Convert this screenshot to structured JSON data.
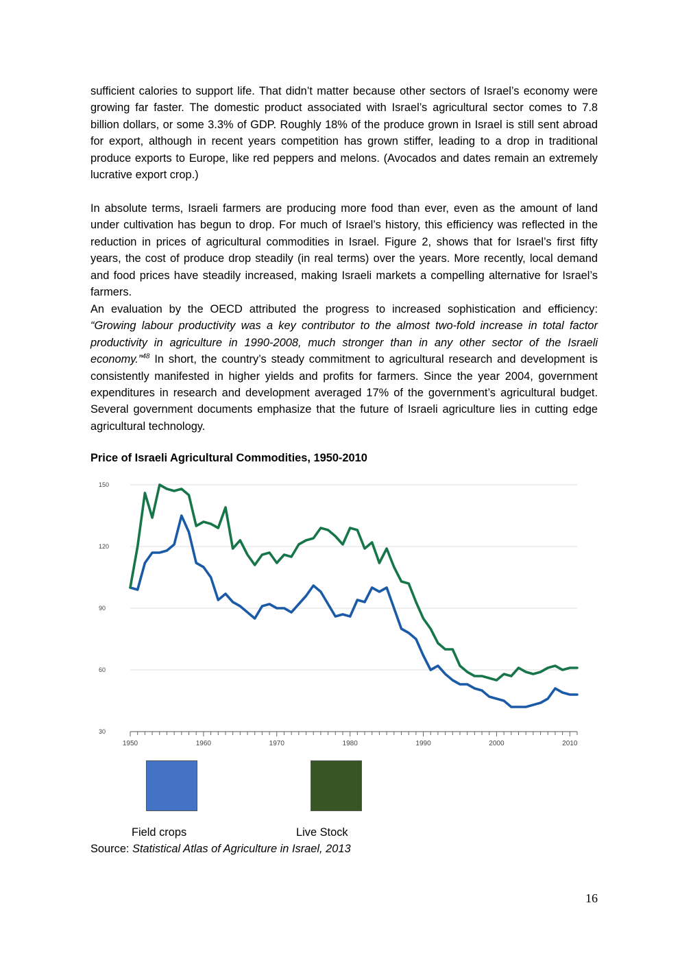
{
  "paragraph1": "sufficient calories to support life. That didn’t matter because other sectors of Israel’s economy were growing far faster. The domestic product associated with Israel’s agricultural sector comes to 7.8 billion dollars, or some 3.3% of GDP. Roughly 18% of the produce grown in Israel is still sent abroad for export, although in recent years competition has grown stiffer, leading to a drop in traditional produce exports to Europe, like red peppers and melons. (Avocados and dates remain an extremely lucrative export crop.)",
  "paragraph2": "In absolute terms, Israeli farmers are producing more food than ever, even as the amount of land under cultivation has begun to drop. For much of Israel’s history, this efficiency was reflected in the reduction in prices of agricultural commodities in Israel. Figure 2, shows that for Israel’s first fifty years, the cost of produce drop steadily (in real terms) over the years. More recently, local demand and food prices have steadily increased, making Israeli markets a compelling alternative for Israel’s farmers.",
  "paragraph3": {
    "intro": "An evaluation by the OECD attributed the progress to increased sophistication and efficiency: ",
    "quote": "“Growing labour productivity was a key contributor to the almost two-fold increase in total factor productivity in agriculture in 1990-2008, much stronger than in any other sector of the Israeli economy.”",
    "footnote": "48",
    "rest": " In short, the country’s steady commitment to agricultural research and development is consistently manifested in higher yields and profits for farmers. Since the year 2004, government expenditures in research and development averaged 17% of the government’s agricultural budget. Several government documents emphasize that the future of Israeli agriculture lies in cutting edge agricultural technology."
  },
  "figure_title": "Price of Israeli Agricultural Commodities, 1950-2010",
  "legend": {
    "field_crops": "Field crops",
    "live_stock": "Live Stock",
    "field_color": "#4472c4",
    "live_color": "#375623"
  },
  "source": {
    "prefix": "Source: ",
    "title": "Statistical Atlas of Agriculture in Israel, 2013"
  },
  "page_number": "16",
  "chart_data": {
    "type": "line",
    "xlim": [
      1950,
      2011
    ],
    "ylim": [
      30,
      150
    ],
    "yticks": [
      30,
      60,
      90,
      120,
      150
    ],
    "xticks": [
      1950,
      1960,
      1970,
      1980,
      1990,
      2000,
      2010
    ],
    "grid": true,
    "series": [
      {
        "key": "field",
        "color": "#1a5aa6",
        "points": [
          [
            1950,
            100
          ],
          [
            1951,
            99
          ],
          [
            1952,
            112
          ],
          [
            1953,
            117
          ],
          [
            1954,
            117
          ],
          [
            1955,
            118
          ],
          [
            1956,
            121
          ],
          [
            1957,
            135
          ],
          [
            1958,
            127
          ],
          [
            1959,
            112
          ],
          [
            1960,
            110
          ],
          [
            1961,
            105
          ],
          [
            1962,
            94
          ],
          [
            1963,
            97
          ],
          [
            1964,
            93
          ],
          [
            1965,
            91
          ],
          [
            1966,
            88
          ],
          [
            1967,
            85
          ],
          [
            1968,
            91
          ],
          [
            1969,
            92
          ],
          [
            1970,
            90
          ],
          [
            1971,
            90
          ],
          [
            1972,
            88
          ],
          [
            1973,
            92
          ],
          [
            1974,
            96
          ],
          [
            1975,
            101
          ],
          [
            1976,
            98
          ],
          [
            1977,
            92
          ],
          [
            1978,
            86
          ],
          [
            1979,
            87
          ],
          [
            1980,
            86
          ],
          [
            1981,
            94
          ],
          [
            1982,
            93
          ],
          [
            1983,
            100
          ],
          [
            1984,
            98
          ],
          [
            1985,
            100
          ],
          [
            1986,
            90
          ],
          [
            1987,
            80
          ],
          [
            1988,
            78
          ],
          [
            1989,
            75
          ],
          [
            1990,
            67
          ],
          [
            1991,
            60
          ],
          [
            1992,
            62
          ],
          [
            1993,
            58
          ],
          [
            1994,
            55
          ],
          [
            1995,
            53
          ],
          [
            1996,
            53
          ],
          [
            1997,
            51
          ],
          [
            1998,
            50
          ],
          [
            1999,
            47
          ],
          [
            2000,
            46
          ],
          [
            2001,
            45
          ],
          [
            2002,
            42
          ],
          [
            2003,
            42
          ],
          [
            2004,
            42
          ],
          [
            2005,
            43
          ],
          [
            2006,
            44
          ],
          [
            2007,
            46
          ],
          [
            2008,
            51
          ],
          [
            2009,
            49
          ],
          [
            2010,
            48
          ],
          [
            2011,
            48
          ]
        ]
      },
      {
        "key": "live",
        "color": "#17754a",
        "points": [
          [
            1950,
            100
          ],
          [
            1951,
            120
          ],
          [
            1952,
            146
          ],
          [
            1953,
            134
          ],
          [
            1954,
            150
          ],
          [
            1955,
            148
          ],
          [
            1956,
            147
          ],
          [
            1957,
            148
          ],
          [
            1958,
            145
          ],
          [
            1959,
            130
          ],
          [
            1960,
            132
          ],
          [
            1961,
            131
          ],
          [
            1962,
            129
          ],
          [
            1963,
            139
          ],
          [
            1964,
            119
          ],
          [
            1965,
            123
          ],
          [
            1966,
            116
          ],
          [
            1967,
            111
          ],
          [
            1968,
            116
          ],
          [
            1969,
            117
          ],
          [
            1970,
            112
          ],
          [
            1971,
            116
          ],
          [
            1972,
            115
          ],
          [
            1973,
            121
          ],
          [
            1974,
            123
          ],
          [
            1975,
            124
          ],
          [
            1976,
            129
          ],
          [
            1977,
            128
          ],
          [
            1978,
            125
          ],
          [
            1979,
            121
          ],
          [
            1980,
            129
          ],
          [
            1981,
            128
          ],
          [
            1982,
            119
          ],
          [
            1983,
            122
          ],
          [
            1984,
            112
          ],
          [
            1985,
            119
          ],
          [
            1986,
            110
          ],
          [
            1987,
            103
          ],
          [
            1988,
            102
          ],
          [
            1989,
            93
          ],
          [
            1990,
            85
          ],
          [
            1991,
            80
          ],
          [
            1992,
            73
          ],
          [
            1993,
            70
          ],
          [
            1994,
            70
          ],
          [
            1995,
            62
          ],
          [
            1996,
            59
          ],
          [
            1997,
            57
          ],
          [
            1998,
            57
          ],
          [
            1999,
            56
          ],
          [
            2000,
            55
          ],
          [
            2001,
            58
          ],
          [
            2002,
            57
          ],
          [
            2003,
            61
          ],
          [
            2004,
            59
          ],
          [
            2005,
            58
          ],
          [
            2006,
            59
          ],
          [
            2007,
            61
          ],
          [
            2008,
            62
          ],
          [
            2009,
            60
          ],
          [
            2010,
            61
          ],
          [
            2011,
            61
          ]
        ]
      }
    ]
  }
}
